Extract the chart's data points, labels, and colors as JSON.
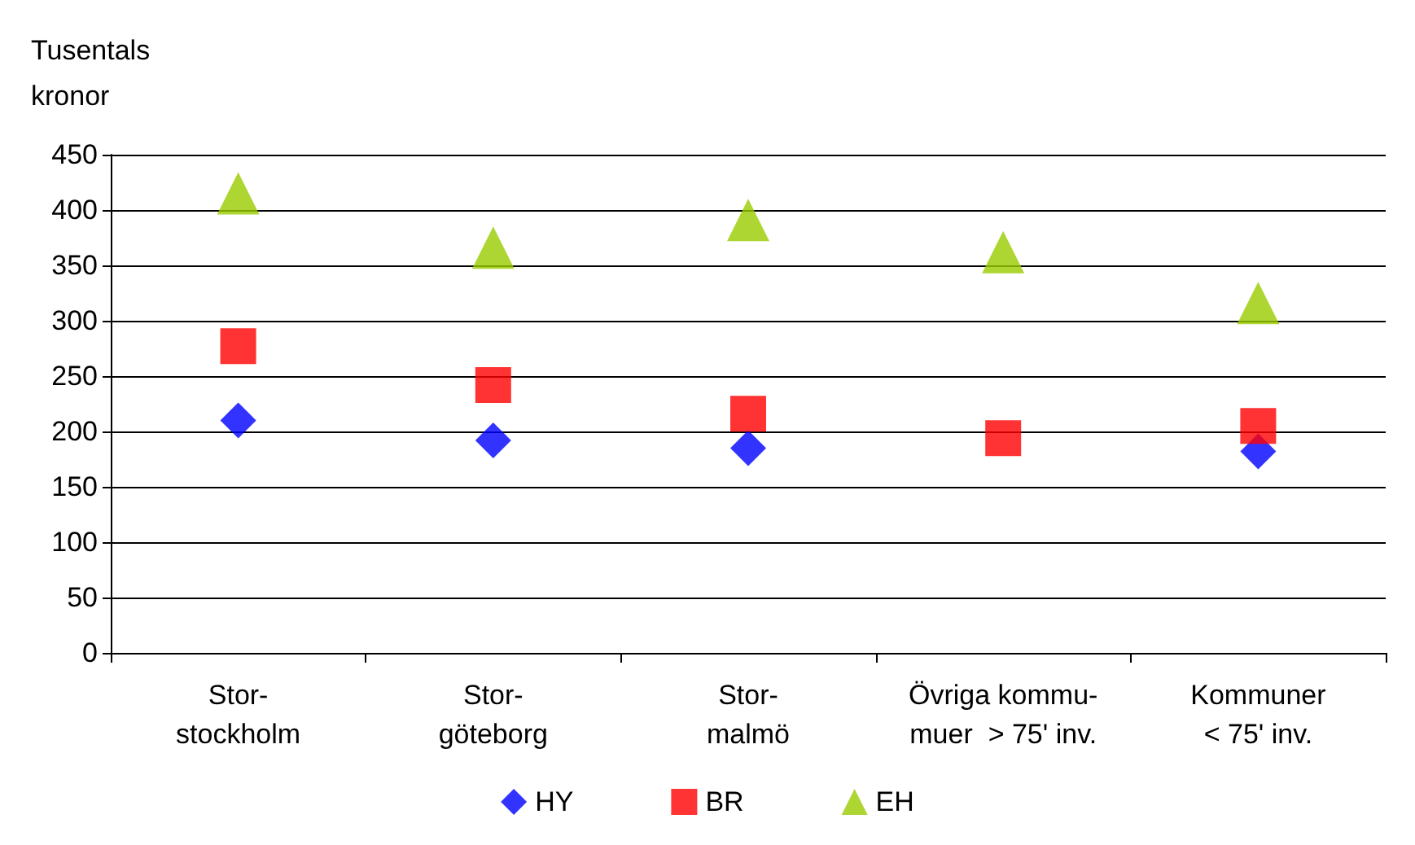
{
  "chart_data": {
    "type": "scatter",
    "ylabel": "Tusentals\nkronor",
    "categories": [
      "Stor-\nstockholm",
      "Stor-\ngöteborg",
      "Stor-\nmalmö",
      "Övriga kommu-\nmuer  > 75' inv.",
      "Kommuner\n< 75' inv."
    ],
    "series": [
      {
        "name": "HY",
        "color": "#0000ff",
        "marker": "diamond",
        "values": [
          210,
          192,
          185,
          null,
          182
        ]
      },
      {
        "name": "BR",
        "color": "#ff0000",
        "marker": "square",
        "values": [
          277,
          242,
          216,
          194,
          205
        ]
      },
      {
        "name": "EH",
        "color": "#99cc00",
        "marker": "triangle",
        "values": [
          415,
          366,
          391,
          362,
          316
        ]
      }
    ],
    "ylim": [
      0,
      450
    ],
    "yticks": [
      0,
      50,
      100,
      150,
      200,
      250,
      300,
      350,
      400,
      450
    ],
    "grid": "y",
    "legend": "bottom"
  }
}
